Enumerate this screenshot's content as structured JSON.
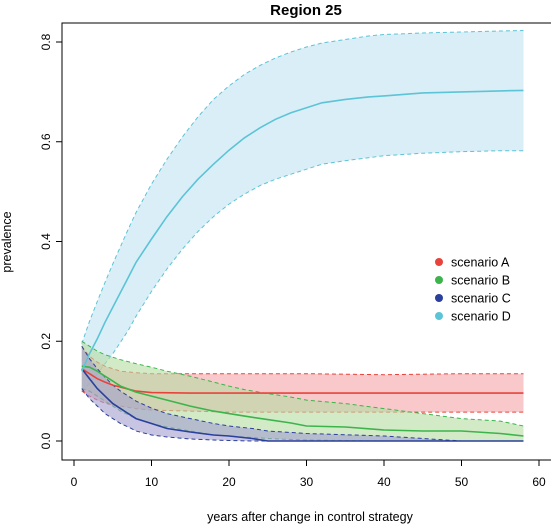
{
  "chart_data": {
    "type": "line",
    "title": "Region 25",
    "xlabel": "years after change in control strategy",
    "ylabel": "prevalence",
    "xlim": [
      0,
      60
    ],
    "ylim": [
      0,
      0.8
    ],
    "xticks": [
      "0",
      "10",
      "20",
      "30",
      "40",
      "50",
      "60"
    ],
    "yticks": [
      "0.0",
      "0.2",
      "0.4",
      "0.6",
      "0.8"
    ],
    "grid": false,
    "legend_position": "right",
    "series": [
      {
        "name": "scenario A",
        "color": "#e8433b",
        "band_color": "#f4a4a6",
        "x": [
          1,
          2,
          3,
          4,
          5,
          6,
          8,
          10,
          15,
          20,
          30,
          40,
          50,
          58
        ],
        "mean": [
          0.145,
          0.135,
          0.125,
          0.118,
          0.112,
          0.108,
          0.1,
          0.097,
          0.096,
          0.096,
          0.096,
          0.096,
          0.096,
          0.096
        ],
        "lower": [
          0.1,
          0.09,
          0.082,
          0.076,
          0.072,
          0.07,
          0.065,
          0.062,
          0.06,
          0.058,
          0.058,
          0.058,
          0.058,
          0.058
        ],
        "upper": [
          0.19,
          0.17,
          0.158,
          0.15,
          0.145,
          0.14,
          0.137,
          0.135,
          0.135,
          0.135,
          0.135,
          0.133,
          0.135,
          0.135
        ]
      },
      {
        "name": "scenario B",
        "color": "#3cb44b",
        "band_color": "#b5dca2",
        "x": [
          1,
          2,
          3,
          4,
          5,
          6,
          8,
          10,
          12,
          15,
          18,
          20,
          22,
          25,
          28,
          30,
          35,
          40,
          45,
          50,
          55,
          58
        ],
        "mean": [
          0.15,
          0.148,
          0.14,
          0.13,
          0.12,
          0.11,
          0.098,
          0.09,
          0.082,
          0.07,
          0.06,
          0.055,
          0.05,
          0.043,
          0.036,
          0.03,
          0.028,
          0.022,
          0.02,
          0.02,
          0.015,
          0.01
        ],
        "lower": [
          0.105,
          0.1,
          0.09,
          0.08,
          0.07,
          0.06,
          0.045,
          0.035,
          0.028,
          0.02,
          0.012,
          0.01,
          0.008,
          0.005,
          0.003,
          0.002,
          0.001,
          0.0,
          0.0,
          0.0,
          0.0,
          0.0
        ],
        "upper": [
          0.2,
          0.19,
          0.18,
          0.173,
          0.168,
          0.163,
          0.155,
          0.148,
          0.14,
          0.13,
          0.118,
          0.11,
          0.103,
          0.095,
          0.088,
          0.082,
          0.075,
          0.065,
          0.055,
          0.045,
          0.04,
          0.03
        ]
      },
      {
        "name": "scenario C",
        "color": "#2b3f9c",
        "band_color": "#a29ecf",
        "x": [
          1,
          2,
          3,
          4,
          5,
          6,
          7,
          8,
          10,
          12,
          15,
          18,
          20,
          23,
          25,
          30,
          40,
          50,
          58
        ],
        "mean": [
          0.145,
          0.125,
          0.105,
          0.09,
          0.075,
          0.065,
          0.055,
          0.045,
          0.035,
          0.025,
          0.018,
          0.012,
          0.01,
          0.005,
          0.0,
          0.0,
          0.0,
          0.0,
          0.0
        ],
        "lower": [
          0.105,
          0.085,
          0.07,
          0.055,
          0.045,
          0.035,
          0.028,
          0.02,
          0.012,
          0.008,
          0.004,
          0.002,
          0.001,
          0.0,
          0.0,
          0.0,
          0.0,
          0.0,
          0.0
        ],
        "upper": [
          0.19,
          0.165,
          0.145,
          0.128,
          0.112,
          0.1,
          0.09,
          0.08,
          0.066,
          0.055,
          0.045,
          0.035,
          0.03,
          0.025,
          0.02,
          0.015,
          0.01,
          0.0,
          0.0
        ]
      },
      {
        "name": "scenario D",
        "color": "#5bc4d6",
        "band_color": "#c1e3f2",
        "x": [
          1,
          2,
          3,
          4,
          5,
          6,
          7,
          8,
          10,
          12,
          14,
          16,
          18,
          20,
          22,
          24,
          26,
          28,
          30,
          32,
          35,
          38,
          40,
          45,
          50,
          55,
          58
        ],
        "mean": [
          0.14,
          0.175,
          0.205,
          0.238,
          0.268,
          0.298,
          0.328,
          0.358,
          0.405,
          0.45,
          0.49,
          0.525,
          0.555,
          0.583,
          0.608,
          0.628,
          0.645,
          0.658,
          0.668,
          0.678,
          0.685,
          0.69,
          0.692,
          0.698,
          0.7,
          0.702,
          0.703
        ],
        "lower": [
          0.1,
          0.115,
          0.135,
          0.155,
          0.175,
          0.198,
          0.222,
          0.25,
          0.3,
          0.345,
          0.385,
          0.42,
          0.45,
          0.475,
          0.495,
          0.512,
          0.525,
          0.535,
          0.545,
          0.555,
          0.562,
          0.568,
          0.572,
          0.577,
          0.58,
          0.582,
          0.582
        ],
        "upper": [
          0.195,
          0.24,
          0.28,
          0.318,
          0.355,
          0.39,
          0.425,
          0.458,
          0.515,
          0.565,
          0.61,
          0.65,
          0.685,
          0.712,
          0.735,
          0.753,
          0.768,
          0.78,
          0.79,
          0.798,
          0.805,
          0.812,
          0.815,
          0.818,
          0.82,
          0.822,
          0.823
        ]
      }
    ]
  }
}
